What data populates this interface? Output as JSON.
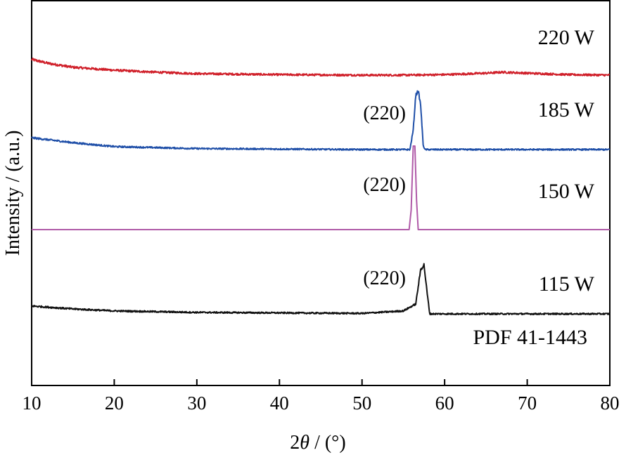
{
  "chart_data": {
    "type": "line",
    "xlabel_prefix": "2",
    "xlabel_symbol": "θ",
    "xlabel_suffix": " / (°)",
    "ylabel": "Intensity / (a.u.)",
    "xlim": [
      10,
      80
    ],
    "xticks": [
      10,
      20,
      30,
      40,
      50,
      60,
      70,
      80
    ],
    "yticks_shown": false,
    "grid": false,
    "series": [
      {
        "name": "220 W",
        "color": "#d0202a",
        "offset": 3,
        "points": [
          [
            10,
            0.16
          ],
          [
            12,
            0.12
          ],
          [
            15,
            0.08
          ],
          [
            20,
            0.05
          ],
          [
            25,
            0.03
          ],
          [
            30,
            0.015
          ],
          [
            40,
            0.005
          ],
          [
            50,
            0.0
          ],
          [
            55,
            0.0
          ],
          [
            60,
            0.005
          ],
          [
            65,
            0.02
          ],
          [
            67,
            0.03
          ],
          [
            70,
            0.02
          ],
          [
            75,
            0.005
          ],
          [
            80,
            0.0
          ]
        ],
        "noise": 0.02
      },
      {
        "name": "185 W",
        "color": "#1f4fa8",
        "offset": 2,
        "points": [
          [
            10,
            0.12
          ],
          [
            15,
            0.07
          ],
          [
            20,
            0.03
          ],
          [
            30,
            0.01
          ],
          [
            40,
            0.005
          ],
          [
            50,
            0.0
          ],
          [
            55.8,
            0.0
          ],
          [
            56.2,
            0.2
          ],
          [
            56.5,
            0.55
          ],
          [
            56.8,
            0.6
          ],
          [
            57.1,
            0.45
          ],
          [
            57.4,
            0.05
          ],
          [
            57.6,
            0.0
          ],
          [
            70,
            0.0
          ],
          [
            80,
            0.0
          ]
        ],
        "noise": 0.015
      },
      {
        "name": "150 W",
        "color": "#b05aa8",
        "offset": 1,
        "points": [
          [
            10,
            0.0
          ],
          [
            55.7,
            0.0
          ],
          [
            55.95,
            0.2
          ],
          [
            56.2,
            0.85
          ],
          [
            56.4,
            0.85
          ],
          [
            56.6,
            0.3
          ],
          [
            56.8,
            0.0
          ],
          [
            80,
            0.0
          ]
        ],
        "noise": 0.0
      },
      {
        "name": "115 W",
        "color": "#111111",
        "offset": 0,
        "points": [
          [
            10,
            0.08
          ],
          [
            15,
            0.05
          ],
          [
            20,
            0.03
          ],
          [
            30,
            0.015
          ],
          [
            40,
            0.01
          ],
          [
            50,
            0.005
          ],
          [
            55,
            0.03
          ],
          [
            56.5,
            0.1
          ],
          [
            57.1,
            0.45
          ],
          [
            57.5,
            0.5
          ],
          [
            57.9,
            0.2
          ],
          [
            58.2,
            0.0
          ],
          [
            65,
            0.0
          ],
          [
            80,
            0.0
          ]
        ],
        "noise": 0.015
      }
    ],
    "peak_annotations": [
      {
        "text": "(220)",
        "series": "185 W"
      },
      {
        "text": "(220)",
        "series": "150 W"
      },
      {
        "text": "(220)",
        "series": "115 W"
      }
    ],
    "reference_label": "PDF 41-1443"
  }
}
